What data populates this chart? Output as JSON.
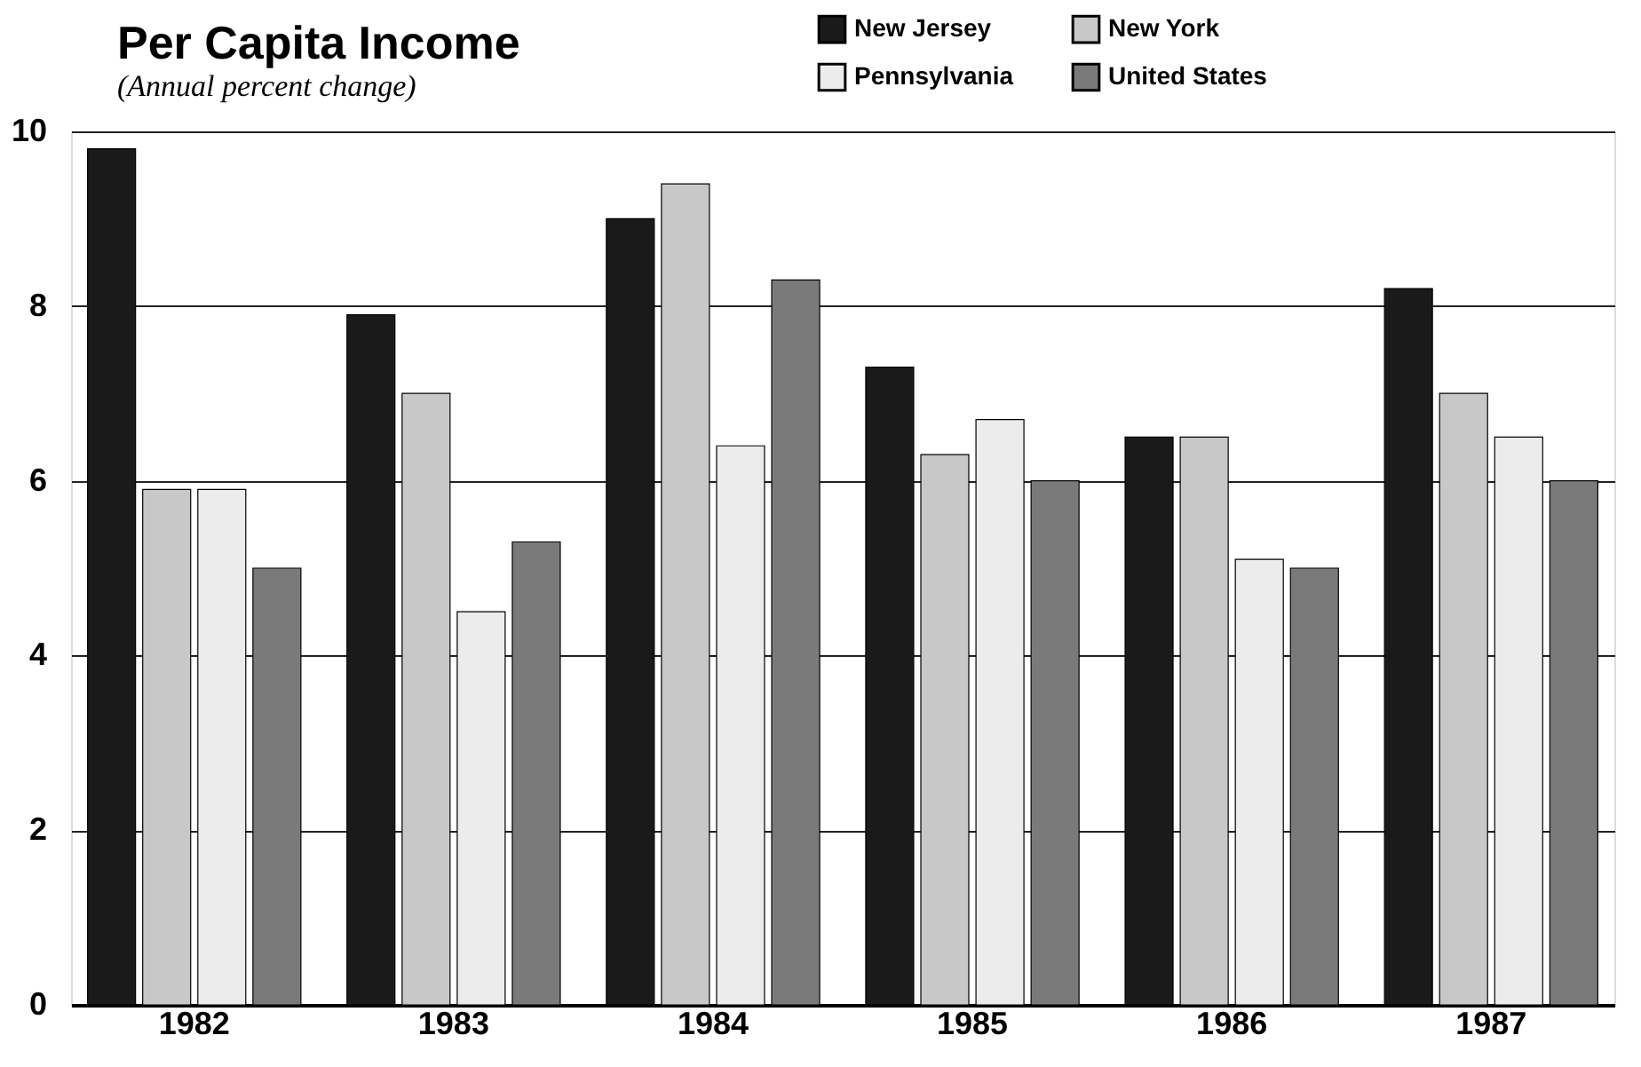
{
  "chart_data": {
    "type": "bar",
    "title": "Per Capita Income",
    "subtitle": "(Annual percent change)",
    "categories": [
      "1982",
      "1983",
      "1984",
      "1985",
      "1986",
      "1987"
    ],
    "series": [
      {
        "name": "New Jersey",
        "color": "#1a1a1a",
        "values": [
          9.8,
          7.9,
          9.0,
          7.3,
          6.5,
          8.2
        ]
      },
      {
        "name": "New York",
        "color": "#c8c8c8",
        "values": [
          5.9,
          7.0,
          9.4,
          6.3,
          6.5,
          7.0
        ]
      },
      {
        "name": "Pennsylvania",
        "color": "#ececec",
        "values": [
          5.9,
          4.5,
          6.4,
          6.7,
          5.1,
          6.5
        ]
      },
      {
        "name": "United States",
        "color": "#7a7a7a",
        "values": [
          5.0,
          5.3,
          8.3,
          6.0,
          5.0,
          6.0
        ]
      }
    ],
    "ylim": [
      0,
      10
    ],
    "yticks": [
      0,
      2,
      4,
      6,
      8,
      10
    ],
    "grid": "y",
    "legend": "top right"
  }
}
